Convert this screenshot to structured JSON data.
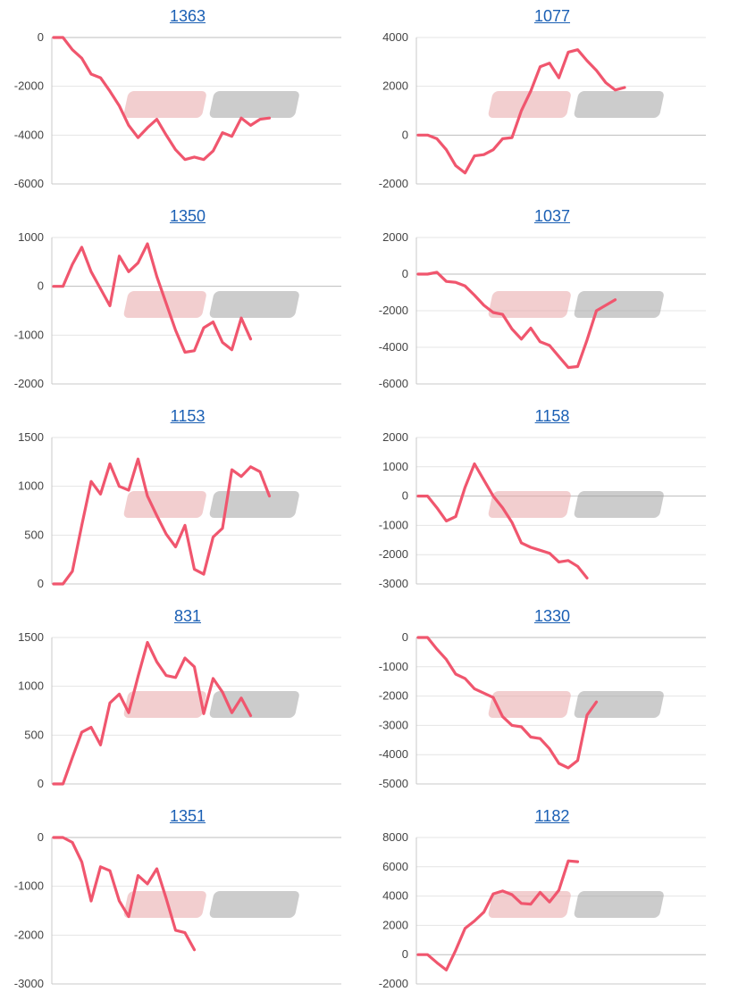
{
  "colors": {
    "line": "#f0566e",
    "title": "#1a5fb4",
    "grid": "#e4e4e4"
  },
  "chart_data": [
    {
      "type": "line",
      "title": "1363",
      "ylim": [
        -6000,
        0
      ],
      "yticks": [
        0,
        -2000,
        -4000,
        -6000
      ],
      "grid": true,
      "values": [
        0,
        0,
        -500,
        -850,
        -1500,
        -1650,
        -2200,
        -2800,
        -3600,
        -4100,
        -3700,
        -3350,
        -4000,
        -4600,
        -5000,
        -4900,
        -5000,
        -4650,
        -3900,
        -4050,
        -3300,
        -3600,
        -3350,
        -3300
      ]
    },
    {
      "type": "line",
      "title": "1077",
      "ylim": [
        -2000,
        4000
      ],
      "yticks": [
        4000,
        2000,
        0,
        -2000
      ],
      "grid": true,
      "values": [
        0,
        0,
        -150,
        -600,
        -1250,
        -1550,
        -850,
        -800,
        -600,
        -150,
        -100,
        1000,
        1800,
        2800,
        2950,
        2350,
        3400,
        3500,
        3050,
        2650,
        2150,
        1850,
        1950
      ]
    },
    {
      "type": "line",
      "title": "1350",
      "ylim": [
        -2000,
        1000
      ],
      "yticks": [
        1000,
        0,
        -1000,
        -2000
      ],
      "grid": true,
      "values": [
        0,
        0,
        450,
        800,
        300,
        -50,
        -400,
        620,
        300,
        480,
        870,
        200,
        -350,
        -900,
        -1350,
        -1320,
        -850,
        -730,
        -1150,
        -1300,
        -650,
        -1080
      ]
    },
    {
      "type": "line",
      "title": "1037",
      "ylim": [
        -6000,
        2000
      ],
      "yticks": [
        2000,
        0,
        -2000,
        -4000,
        -6000
      ],
      "grid": true,
      "values": [
        0,
        0,
        100,
        -400,
        -450,
        -650,
        -1150,
        -1700,
        -2100,
        -2200,
        -3000,
        -3550,
        -2950,
        -3700,
        -3900,
        -4500,
        -5100,
        -5050,
        -3600,
        -2000,
        -1700,
        -1400
      ]
    },
    {
      "type": "line",
      "title": "1153",
      "ylim": [
        0,
        1500
      ],
      "yticks": [
        1500,
        1000,
        500,
        0
      ],
      "grid": true,
      "values": [
        0,
        0,
        130,
        600,
        1050,
        920,
        1230,
        1000,
        960,
        1280,
        900,
        700,
        510,
        380,
        600,
        150,
        100,
        480,
        570,
        1170,
        1100,
        1200,
        1150,
        900
      ]
    },
    {
      "type": "line",
      "title": "1158",
      "ylim": [
        -3000,
        2000
      ],
      "yticks": [
        2000,
        1000,
        0,
        -1000,
        -2000,
        -3000
      ],
      "grid": true,
      "values": [
        0,
        0,
        -400,
        -850,
        -700,
        300,
        1100,
        550,
        0,
        -400,
        -900,
        -1600,
        -1750,
        -1850,
        -1950,
        -2250,
        -2200,
        -2400,
        -2800
      ]
    },
    {
      "type": "line",
      "title": "831",
      "ylim": [
        0,
        1500
      ],
      "yticks": [
        1500,
        1000,
        500,
        0
      ],
      "grid": true,
      "values": [
        0,
        0,
        270,
        530,
        580,
        400,
        830,
        920,
        730,
        1100,
        1450,
        1250,
        1110,
        1090,
        1290,
        1200,
        720,
        1080,
        940,
        730,
        880,
        700
      ]
    },
    {
      "type": "line",
      "title": "1330",
      "ylim": [
        -5000,
        0
      ],
      "yticks": [
        0,
        -1000,
        -2000,
        -3000,
        -4000,
        -5000
      ],
      "grid": true,
      "values": [
        0,
        0,
        -400,
        -750,
        -1250,
        -1400,
        -1750,
        -1900,
        -2050,
        -2700,
        -3000,
        -3050,
        -3400,
        -3450,
        -3800,
        -4300,
        -4450,
        -4200,
        -2650,
        -2200
      ]
    },
    {
      "type": "line",
      "title": "1351",
      "ylim": [
        -3000,
        0
      ],
      "yticks": [
        0,
        -1000,
        -2000,
        -3000
      ],
      "grid": true,
      "values": [
        0,
        0,
        -100,
        -500,
        -1300,
        -600,
        -680,
        -1300,
        -1620,
        -780,
        -950,
        -640,
        -1250,
        -1900,
        -1950,
        -2300
      ]
    },
    {
      "type": "line",
      "title": "1182",
      "ylim": [
        -2000,
        8000
      ],
      "yticks": [
        8000,
        6000,
        4000,
        2000,
        0,
        -2000
      ],
      "grid": true,
      "values": [
        0,
        0,
        -550,
        -1050,
        300,
        1800,
        2300,
        2900,
        4150,
        4350,
        4100,
        3500,
        3450,
        4250,
        3600,
        4400,
        6400,
        6350
      ]
    }
  ]
}
